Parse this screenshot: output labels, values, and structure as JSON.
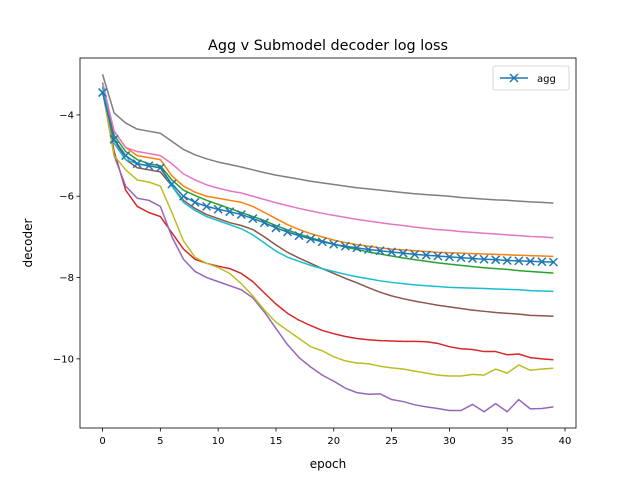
{
  "chart_data": {
    "type": "line",
    "title": "Agg v Submodel decoder log loss",
    "xlabel": "epoch",
    "ylabel": "decoder",
    "xlim": [
      -1.95,
      40.95
    ],
    "ylim": [
      -11.7,
      -2.6
    ],
    "xticks": [
      0,
      5,
      10,
      15,
      20,
      25,
      30,
      35,
      40
    ],
    "yticks": [
      -10,
      -8,
      -6,
      -4
    ],
    "ytick_labels": [
      "−10",
      "−8",
      "−6",
      "−4"
    ],
    "grid": false,
    "legend_position": "top-right",
    "legend_labels": [
      "agg"
    ],
    "x": [
      0,
      1,
      2,
      3,
      4,
      5,
      6,
      7,
      8,
      9,
      10,
      11,
      12,
      13,
      14,
      15,
      16,
      17,
      18,
      19,
      20,
      21,
      22,
      23,
      24,
      25,
      26,
      27,
      28,
      29,
      30,
      31,
      32,
      33,
      34,
      35,
      36,
      37,
      38,
      39
    ],
    "series": [
      {
        "name": "agg",
        "color": "#1f77b4",
        "marker": "x",
        "values": [
          -3.45,
          -4.6,
          -5.0,
          -5.2,
          -5.25,
          -5.3,
          -5.7,
          -6.0,
          -6.15,
          -6.25,
          -6.32,
          -6.38,
          -6.45,
          -6.55,
          -6.65,
          -6.78,
          -6.88,
          -6.97,
          -7.05,
          -7.12,
          -7.18,
          -7.23,
          -7.27,
          -7.31,
          -7.34,
          -7.37,
          -7.4,
          -7.43,
          -7.45,
          -7.47,
          -7.49,
          -7.51,
          -7.53,
          -7.55,
          -7.56,
          -7.58,
          -7.59,
          -7.6,
          -7.61,
          -7.62
        ]
      },
      {
        "color": "#ff7f0e",
        "values": [
          -3.3,
          -4.4,
          -4.8,
          -5.0,
          -5.05,
          -5.1,
          -5.5,
          -5.75,
          -5.9,
          -6.0,
          -6.05,
          -6.1,
          -6.15,
          -6.25,
          -6.4,
          -6.55,
          -6.7,
          -6.82,
          -6.92,
          -7.0,
          -7.08,
          -7.14,
          -7.19,
          -7.23,
          -7.27,
          -7.3,
          -7.32,
          -7.34,
          -7.36,
          -7.38,
          -7.39,
          -7.4,
          -7.41,
          -7.42,
          -7.43,
          -7.44,
          -7.45,
          -7.46,
          -7.47,
          -7.48
        ]
      },
      {
        "color": "#2ca02c",
        "values": [
          -3.2,
          -4.5,
          -4.9,
          -5.1,
          -5.2,
          -5.25,
          -5.6,
          -5.85,
          -5.98,
          -6.1,
          -6.2,
          -6.3,
          -6.4,
          -6.5,
          -6.6,
          -6.72,
          -6.83,
          -6.93,
          -7.02,
          -7.1,
          -7.18,
          -7.25,
          -7.31,
          -7.37,
          -7.42,
          -7.47,
          -7.52,
          -7.56,
          -7.6,
          -7.64,
          -7.67,
          -7.7,
          -7.73,
          -7.76,
          -7.78,
          -7.8,
          -7.83,
          -7.85,
          -7.87,
          -7.89
        ]
      },
      {
        "color": "#d62728",
        "values": [
          -3.3,
          -4.9,
          -5.85,
          -6.25,
          -6.4,
          -6.5,
          -6.9,
          -7.3,
          -7.55,
          -7.65,
          -7.72,
          -7.78,
          -7.9,
          -8.1,
          -8.38,
          -8.65,
          -8.88,
          -9.05,
          -9.18,
          -9.3,
          -9.38,
          -9.45,
          -9.5,
          -9.53,
          -9.55,
          -9.56,
          -9.57,
          -9.57,
          -9.58,
          -9.62,
          -9.7,
          -9.75,
          -9.77,
          -9.82,
          -9.82,
          -9.9,
          -9.88,
          -9.97,
          -10.0,
          -10.02
        ]
      },
      {
        "color": "#9467bd",
        "values": [
          -3.4,
          -5.0,
          -5.75,
          -6.05,
          -6.1,
          -6.25,
          -7.0,
          -7.55,
          -7.85,
          -8.0,
          -8.1,
          -8.2,
          -8.3,
          -8.5,
          -8.85,
          -9.25,
          -9.65,
          -9.97,
          -10.2,
          -10.4,
          -10.55,
          -10.72,
          -10.83,
          -10.87,
          -10.86,
          -11.0,
          -11.05,
          -11.13,
          -11.18,
          -11.22,
          -11.27,
          -11.27,
          -11.12,
          -11.3,
          -11.1,
          -11.3,
          -11.0,
          -11.23,
          -11.22,
          -11.18
        ]
      },
      {
        "color": "#8c564b",
        "values": [
          -3.2,
          -4.6,
          -5.1,
          -5.3,
          -5.35,
          -5.4,
          -5.75,
          -6.1,
          -6.3,
          -6.45,
          -6.55,
          -6.65,
          -6.72,
          -6.82,
          -7.0,
          -7.2,
          -7.38,
          -7.52,
          -7.65,
          -7.78,
          -7.9,
          -8.02,
          -8.13,
          -8.25,
          -8.36,
          -8.45,
          -8.52,
          -8.58,
          -8.63,
          -8.68,
          -8.72,
          -8.76,
          -8.8,
          -8.83,
          -8.86,
          -8.88,
          -8.9,
          -8.93,
          -8.94,
          -8.95
        ]
      },
      {
        "color": "#e377c2",
        "values": [
          -3.2,
          -4.4,
          -4.8,
          -4.9,
          -4.95,
          -5.0,
          -5.2,
          -5.45,
          -5.6,
          -5.72,
          -5.8,
          -5.87,
          -5.92,
          -6.0,
          -6.08,
          -6.16,
          -6.23,
          -6.3,
          -6.36,
          -6.42,
          -6.47,
          -6.52,
          -6.57,
          -6.61,
          -6.65,
          -6.69,
          -6.72,
          -6.76,
          -6.79,
          -6.82,
          -6.84,
          -6.87,
          -6.89,
          -6.91,
          -6.93,
          -6.95,
          -6.97,
          -6.99,
          -7.0,
          -7.02
        ]
      },
      {
        "color": "#7f7f7f",
        "values": [
          -3.0,
          -3.95,
          -4.2,
          -4.35,
          -4.4,
          -4.45,
          -4.65,
          -4.85,
          -4.98,
          -5.08,
          -5.16,
          -5.22,
          -5.28,
          -5.35,
          -5.42,
          -5.48,
          -5.53,
          -5.58,
          -5.63,
          -5.67,
          -5.71,
          -5.75,
          -5.79,
          -5.82,
          -5.85,
          -5.88,
          -5.91,
          -5.94,
          -5.96,
          -5.98,
          -6.0,
          -6.03,
          -6.05,
          -6.07,
          -6.09,
          -6.1,
          -6.12,
          -6.14,
          -6.15,
          -6.17
        ]
      },
      {
        "color": "#bcbd22",
        "values": [
          -3.4,
          -5.0,
          -5.35,
          -5.6,
          -5.65,
          -5.75,
          -6.4,
          -7.1,
          -7.5,
          -7.65,
          -7.75,
          -7.9,
          -8.15,
          -8.45,
          -8.8,
          -9.1,
          -9.3,
          -9.5,
          -9.7,
          -9.8,
          -9.95,
          -10.05,
          -10.1,
          -10.12,
          -10.18,
          -10.22,
          -10.25,
          -10.3,
          -10.35,
          -10.4,
          -10.42,
          -10.42,
          -10.38,
          -10.4,
          -10.25,
          -10.35,
          -10.15,
          -10.28,
          -10.25,
          -10.23
        ]
      },
      {
        "color": "#17becf",
        "values": [
          -3.3,
          -4.7,
          -5.1,
          -5.2,
          -5.25,
          -5.3,
          -5.75,
          -6.15,
          -6.35,
          -6.5,
          -6.6,
          -6.7,
          -6.8,
          -6.95,
          -7.15,
          -7.35,
          -7.5,
          -7.6,
          -7.7,
          -7.78,
          -7.85,
          -7.92,
          -7.98,
          -8.03,
          -8.08,
          -8.12,
          -8.15,
          -8.18,
          -8.2,
          -8.22,
          -8.24,
          -8.25,
          -8.26,
          -8.27,
          -8.28,
          -8.29,
          -8.3,
          -8.32,
          -8.33,
          -8.34
        ]
      }
    ]
  }
}
